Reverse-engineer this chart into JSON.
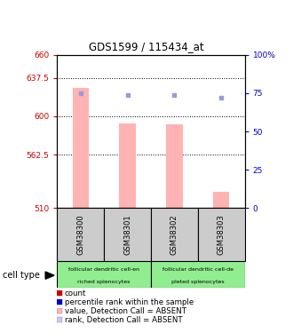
{
  "title": "GDS1599 / 115434_at",
  "samples": [
    "GSM38300",
    "GSM38301",
    "GSM38302",
    "GSM38303"
  ],
  "bar_values": [
    628,
    593,
    592,
    526
  ],
  "rank_values": [
    75,
    74,
    74,
    72
  ],
  "ylim_left": [
    510,
    660
  ],
  "ylim_right": [
    0,
    100
  ],
  "yticks_left": [
    510,
    562.5,
    600,
    637.5,
    660
  ],
  "yticks_right": [
    0,
    25,
    50,
    75,
    100
  ],
  "ytick_labels_left": [
    "510",
    "562.5",
    "600",
    "637.5",
    "660"
  ],
  "ytick_labels_right": [
    "0",
    "25",
    "50",
    "75",
    "100%"
  ],
  "bar_color": "#ffb3b3",
  "rank_color": "#9999dd",
  "bar_baseline": 510,
  "cell_type_groups": [
    {
      "label": "follicular dendritic cell-en\nriched splenocytes",
      "cols": [
        0,
        1
      ],
      "color": "#90ee90"
    },
    {
      "label": "follicular dendritic cell-de\npleted splenocytes",
      "cols": [
        2,
        3
      ],
      "color": "#90ee90"
    }
  ],
  "legend_items": [
    {
      "color": "#cc0000",
      "label": "count"
    },
    {
      "color": "#0000cc",
      "label": "percentile rank within the sample"
    },
    {
      "color": "#ffb3b3",
      "label": "value, Detection Call = ABSENT"
    },
    {
      "color": "#c8c8ff",
      "label": "rank, Detection Call = ABSENT"
    }
  ],
  "cell_type_label": "cell type",
  "left_tick_color": "#cc0000",
  "right_tick_color": "#0000cc",
  "sample_box_color": "#cccccc",
  "grid_values": [
    637.5,
    600,
    562.5
  ],
  "bar_width": 0.35
}
